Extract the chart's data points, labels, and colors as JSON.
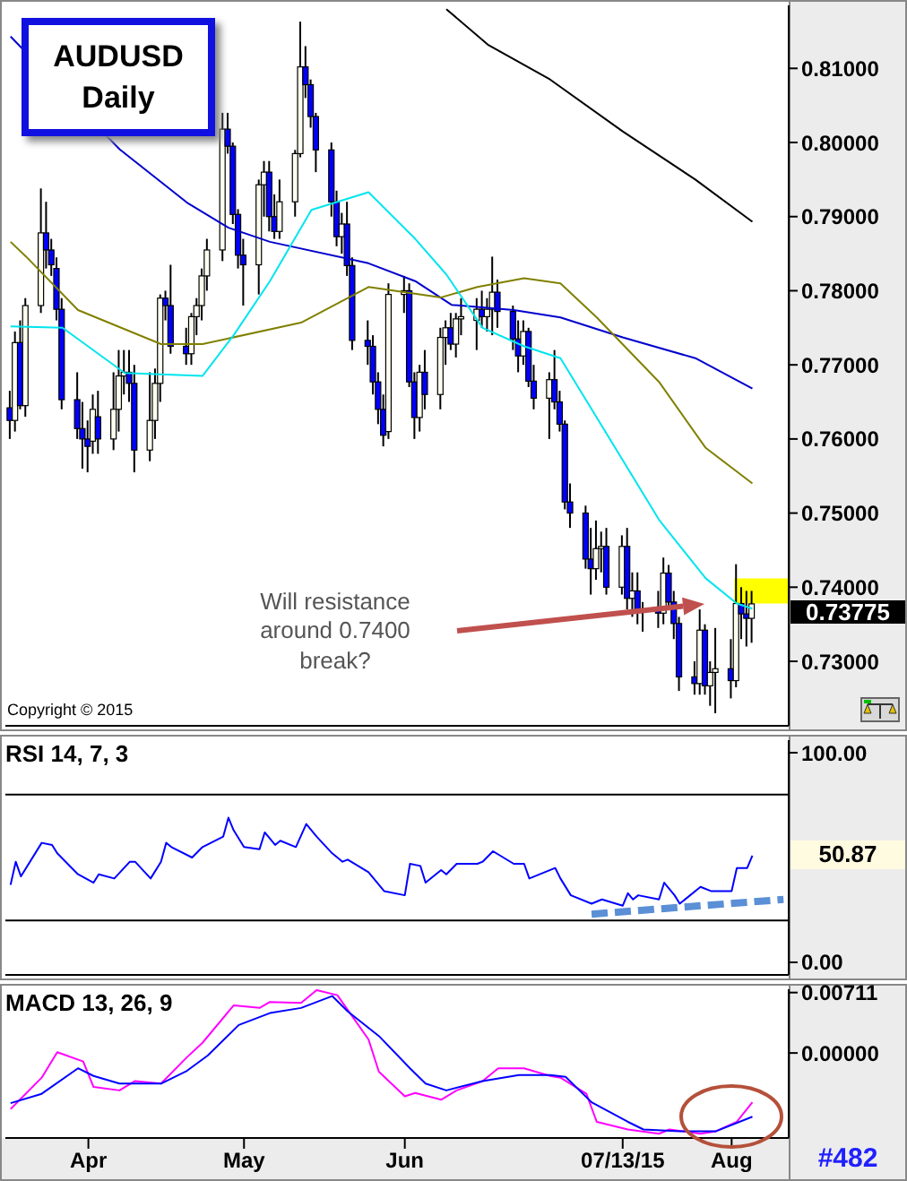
{
  "chart_data": [
    {
      "type": "candlestick",
      "title": "AUDUSD Daily",
      "x": [
        "2015-03-17",
        "2015-03-18",
        "2015-03-19",
        "2015-03-20",
        "2015-03-23",
        "2015-03-24",
        "2015-03-25",
        "2015-03-26",
        "2015-03-27",
        "2015-03-30",
        "2015-03-31",
        "2015-04-01",
        "2015-04-02",
        "2015-04-03",
        "2015-04-06",
        "2015-04-07",
        "2015-04-08",
        "2015-04-09",
        "2015-04-10",
        "2015-04-13",
        "2015-04-14",
        "2015-04-15",
        "2015-04-16",
        "2015-04-17",
        "2015-04-20",
        "2015-04-21",
        "2015-04-22",
        "2015-04-23",
        "2015-04-24",
        "2015-04-27",
        "2015-04-28",
        "2015-04-29",
        "2015-04-30",
        "2015-05-01",
        "2015-05-04",
        "2015-05-05",
        "2015-05-06",
        "2015-05-07",
        "2015-05-08",
        "2015-05-11",
        "2015-05-12",
        "2015-05-13",
        "2015-05-14",
        "2015-05-15",
        "2015-05-18",
        "2015-05-19",
        "2015-05-20",
        "2015-05-21",
        "2015-05-22",
        "2015-05-25",
        "2015-05-26",
        "2015-05-27",
        "2015-05-28",
        "2015-05-29",
        "2015-06-01",
        "2015-06-02",
        "2015-06-03",
        "2015-06-04",
        "2015-06-05",
        "2015-06-08",
        "2015-06-09",
        "2015-06-10",
        "2015-06-11",
        "2015-06-12",
        "2015-06-15",
        "2015-06-16",
        "2015-06-17",
        "2015-06-18",
        "2015-06-19",
        "2015-06-22",
        "2015-06-23",
        "2015-06-24",
        "2015-06-25",
        "2015-06-26",
        "2015-06-29",
        "2015-06-30",
        "2015-07-01",
        "2015-07-02",
        "2015-07-03",
        "2015-07-06",
        "2015-07-07",
        "2015-07-08",
        "2015-07-09",
        "2015-07-10",
        "2015-07-13",
        "2015-07-14",
        "2015-07-15",
        "2015-07-16",
        "2015-07-17",
        "2015-07-20",
        "2015-07-21",
        "2015-07-22",
        "2015-07-23",
        "2015-07-24",
        "2015-07-27",
        "2015-07-28",
        "2015-07-29",
        "2015-07-30",
        "2015-07-31",
        "2015-08-03",
        "2015-08-04",
        "2015-08-05",
        "2015-08-06",
        "2015-08-07"
      ],
      "ohlc": [
        [
          0.7642,
          0.7665,
          0.76,
          0.7625
        ],
        [
          0.7625,
          0.7745,
          0.761,
          0.773
        ],
        [
          0.773,
          0.776,
          0.764,
          0.7645
        ],
        [
          0.7645,
          0.779,
          0.763,
          0.778
        ],
        [
          0.778,
          0.7938,
          0.777,
          0.7878
        ],
        [
          0.7878,
          0.792,
          0.783,
          0.7855
        ],
        [
          0.7855,
          0.787,
          0.782,
          0.7835
        ],
        [
          0.783,
          0.7845,
          0.776,
          0.7775
        ],
        [
          0.7775,
          0.779,
          0.764,
          0.7653
        ],
        [
          0.7653,
          0.769,
          0.76,
          0.7614
        ],
        [
          0.7614,
          0.765,
          0.756,
          0.76
        ],
        [
          0.76,
          0.7625,
          0.7555,
          0.759
        ],
        [
          0.7597,
          0.766,
          0.758,
          0.764
        ],
        [
          0.763,
          0.7665,
          0.758,
          0.76
        ],
        [
          0.76,
          0.769,
          0.7585,
          0.764
        ],
        [
          0.764,
          0.772,
          0.761,
          0.7685
        ],
        [
          0.7685,
          0.772,
          0.766,
          0.769
        ],
        [
          0.769,
          0.772,
          0.765,
          0.7675
        ],
        [
          0.7675,
          0.77,
          0.7555,
          0.7585
        ],
        [
          0.7585,
          0.769,
          0.757,
          0.7625
        ],
        [
          0.7625,
          0.7695,
          0.76,
          0.7675
        ],
        [
          0.7675,
          0.7795,
          0.765,
          0.779
        ],
        [
          0.779,
          0.78,
          0.776,
          0.778
        ],
        [
          0.778,
          0.7835,
          0.7715,
          0.7725
        ],
        [
          0.7725,
          0.775,
          0.77,
          0.7715
        ],
        [
          0.7715,
          0.777,
          0.77,
          0.7765
        ],
        [
          0.7765,
          0.779,
          0.774,
          0.778
        ],
        [
          0.778,
          0.783,
          0.776,
          0.782
        ],
        [
          0.782,
          0.787,
          0.78,
          0.7855
        ],
        [
          0.7855,
          0.804,
          0.784,
          0.8018
        ],
        [
          0.8018,
          0.804,
          0.7985,
          0.7995
        ],
        [
          0.7995,
          0.8,
          0.789,
          0.7903
        ],
        [
          0.7903,
          0.791,
          0.783,
          0.7848
        ],
        [
          0.7848,
          0.787,
          0.778,
          0.7835
        ],
        [
          0.7835,
          0.795,
          0.7795,
          0.7943
        ],
        [
          0.7943,
          0.7975,
          0.79,
          0.796
        ],
        [
          0.796,
          0.7975,
          0.788,
          0.79
        ],
        [
          0.79,
          0.793,
          0.787,
          0.788
        ],
        [
          0.788,
          0.795,
          0.787,
          0.792
        ],
        [
          0.792,
          0.799,
          0.79,
          0.7985
        ],
        [
          0.7985,
          0.8163,
          0.798,
          0.8102
        ],
        [
          0.8102,
          0.813,
          0.806,
          0.8078
        ],
        [
          0.8078,
          0.8085,
          0.802,
          0.8035
        ],
        [
          0.8035,
          0.804,
          0.796,
          0.799
        ],
        [
          0.799,
          0.8,
          0.79,
          0.792
        ],
        [
          0.792,
          0.7935,
          0.786,
          0.7873
        ],
        [
          0.7873,
          0.7905,
          0.785,
          0.789
        ],
        [
          0.789,
          0.792,
          0.782,
          0.7834
        ],
        [
          0.7834,
          0.7845,
          0.772,
          0.7733
        ],
        [
          0.7733,
          0.776,
          0.77,
          0.7725
        ],
        [
          0.7725,
          0.774,
          0.766,
          0.7677
        ],
        [
          0.7677,
          0.769,
          0.762,
          0.764
        ],
        [
          0.764,
          0.766,
          0.759,
          0.7605
        ],
        [
          0.761,
          0.781,
          0.76,
          0.7795
        ],
        [
          0.7795,
          0.782,
          0.777,
          0.78
        ],
        [
          0.78,
          0.781,
          0.767,
          0.7677
        ],
        [
          0.7677,
          0.769,
          0.76,
          0.7629
        ],
        [
          0.7629,
          0.77,
          0.761,
          0.769
        ],
        [
          0.769,
          0.772,
          0.764,
          0.766
        ],
        [
          0.766,
          0.775,
          0.764,
          0.7737
        ],
        [
          0.7737,
          0.776,
          0.77,
          0.775
        ],
        [
          0.775,
          0.777,
          0.772,
          0.7728
        ],
        [
          0.7728,
          0.777,
          0.771,
          0.7762
        ],
        [
          0.7762,
          0.779,
          0.774,
          0.7765
        ],
        [
          0.776,
          0.779,
          0.772,
          0.7775
        ],
        [
          0.7775,
          0.78,
          0.775,
          0.7765
        ],
        [
          0.7765,
          0.779,
          0.7745,
          0.7775
        ],
        [
          0.7775,
          0.7846,
          0.774,
          0.7798
        ],
        [
          0.7798,
          0.7815,
          0.775,
          0.7772
        ],
        [
          0.7772,
          0.778,
          0.772,
          0.7735
        ],
        [
          0.7735,
          0.776,
          0.769,
          0.7712
        ],
        [
          0.7712,
          0.776,
          0.77,
          0.7745
        ],
        [
          0.7745,
          0.775,
          0.767,
          0.7678
        ],
        [
          0.7678,
          0.77,
          0.764,
          0.7655
        ],
        [
          0.7655,
          0.769,
          0.76,
          0.768
        ],
        [
          0.768,
          0.772,
          0.764,
          0.765
        ],
        [
          0.765,
          0.7665,
          0.761,
          0.762
        ],
        [
          0.762,
          0.7625,
          0.7505,
          0.7515
        ],
        [
          0.7515,
          0.754,
          0.748,
          0.75
        ],
        [
          0.75,
          0.751,
          0.7425,
          0.7438
        ],
        [
          0.7438,
          0.748,
          0.739,
          0.7425
        ],
        [
          0.7425,
          0.749,
          0.741,
          0.7452
        ],
        [
          0.7452,
          0.7475,
          0.742,
          0.7455
        ],
        [
          0.7455,
          0.748,
          0.739,
          0.74
        ],
        [
          0.74,
          0.747,
          0.739,
          0.7455
        ],
        [
          0.7455,
          0.748,
          0.737,
          0.7385
        ],
        [
          0.7385,
          0.742,
          0.736,
          0.7395
        ],
        [
          0.7395,
          0.742,
          0.735,
          0.7366
        ],
        [
          0.7366,
          0.738,
          0.734,
          0.737
        ],
        [
          0.737,
          0.7395,
          0.7345,
          0.7365
        ],
        [
          0.7365,
          0.744,
          0.735,
          0.7419
        ],
        [
          0.7419,
          0.743,
          0.737,
          0.738
        ],
        [
          0.738,
          0.7395,
          0.733,
          0.7351
        ],
        [
          0.7351,
          0.736,
          0.726,
          0.7279
        ],
        [
          0.7279,
          0.73,
          0.7255,
          0.727
        ],
        [
          0.727,
          0.737,
          0.7255,
          0.7342
        ],
        [
          0.7342,
          0.735,
          0.7255,
          0.7267
        ],
        [
          0.7267,
          0.73,
          0.724,
          0.7285
        ],
        [
          0.7285,
          0.7345,
          0.723,
          0.729
        ],
        [
          0.729,
          0.733,
          0.725,
          0.7274
        ],
        [
          0.7274,
          0.7431,
          0.7265,
          0.7378
        ],
        [
          0.7378,
          0.74,
          0.733,
          0.7364
        ],
        [
          0.7364,
          0.7395,
          0.732,
          0.7358
        ],
        [
          0.7358,
          0.7395,
          0.7325,
          0.73775
        ]
      ],
      "series": [
        {
          "type": "line",
          "color": "#000000",
          "x": [
            "2015-06-09",
            "2015-06-17",
            "2015-06-29",
            "2015-07-13",
            "2015-07-27",
            "2015-08-07"
          ],
          "values": [
            0.818,
            0.8132,
            0.8085,
            0.8015,
            0.795,
            0.7893
          ]
        },
        {
          "type": "line",
          "color": "#0000cc",
          "x": [
            "2015-03-17",
            "2015-04-07",
            "2015-04-20",
            "2015-04-28",
            "2015-05-06",
            "2015-05-25",
            "2015-06-03",
            "2015-06-10",
            "2015-06-22",
            "2015-07-01",
            "2015-07-13",
            "2015-07-27",
            "2015-08-07"
          ],
          "values": [
            0.8143,
            0.7991,
            0.7919,
            0.7885,
            0.7866,
            0.7837,
            0.7813,
            0.7781,
            0.7774,
            0.7764,
            0.7737,
            0.7709,
            0.7668
          ]
        },
        {
          "type": "line",
          "color": "#808000",
          "x": [
            "2015-03-17",
            "2015-03-20",
            "2015-03-30",
            "2015-04-15",
            "2015-04-23",
            "2015-05-12",
            "2015-05-25",
            "2015-06-08",
            "2015-06-15",
            "2015-06-24",
            "2015-07-01",
            "2015-07-08",
            "2015-07-20",
            "2015-07-29",
            "2015-08-07"
          ],
          "values": [
            0.7866,
            0.7846,
            0.7774,
            0.7728,
            0.7728,
            0.7757,
            0.7805,
            0.7791,
            0.7805,
            0.7817,
            0.781,
            0.7764,
            0.7677,
            0.7588,
            0.754
          ]
        },
        {
          "type": "line",
          "color": "#00e5ee",
          "x": [
            "2015-03-17",
            "2015-03-27",
            "2015-04-08",
            "2015-04-23",
            "2015-04-29",
            "2015-05-06",
            "2015-05-14",
            "2015-05-25",
            "2015-06-03",
            "2015-06-09",
            "2015-06-16",
            "2015-06-24",
            "2015-07-01",
            "2015-07-08",
            "2015-07-20",
            "2015-07-29",
            "2015-08-04",
            "2015-08-07"
          ],
          "values": [
            0.7752,
            0.775,
            0.7689,
            0.7685,
            0.774,
            0.7813,
            0.7909,
            0.7933,
            0.787,
            0.7822,
            0.775,
            0.7725,
            0.7709,
            0.7629,
            0.7491,
            0.7412,
            0.7378,
            0.7371
          ]
        }
      ],
      "xlim": [
        "2015-03-16",
        "2015-08-14"
      ],
      "ylim": [
        0.7213,
        0.8185
      ],
      "yticks": [
        {
          "value": 0.73,
          "label": "0.73000"
        },
        {
          "value": 0.74,
          "label": "0.74000"
        },
        {
          "value": 0.75,
          "label": "0.75000"
        },
        {
          "value": 0.76,
          "label": "0.76000"
        },
        {
          "value": 0.77,
          "label": "0.77000"
        },
        {
          "value": 0.78,
          "label": "0.78000"
        },
        {
          "value": 0.79,
          "label": "0.79000"
        },
        {
          "value": 0.8,
          "label": "0.80000"
        },
        {
          "value": 0.81,
          "label": "0.81000"
        }
      ],
      "tick_labels": "y",
      "bands": [
        {
          "axis": "y",
          "from": 0.7378,
          "to": 0.7412,
          "color": "#ffff00"
        }
      ],
      "annotations": [
        "Will resistance around 0.7400 break?",
        "Copyright © 2015",
        "0.73775"
      ]
    },
    {
      "type": "line",
      "title": "RSI 14, 7, 3",
      "series": [
        {
          "color": "#0000ff",
          "x": [
            "2015-03-17",
            "2015-03-18",
            "2015-03-19",
            "2015-03-23",
            "2015-03-25",
            "2015-03-26",
            "2015-03-30",
            "2015-04-02",
            "2015-04-03",
            "2015-04-06",
            "2015-04-09",
            "2015-04-10",
            "2015-04-13",
            "2015-04-15",
            "2015-04-16",
            "2015-04-17",
            "2015-04-21",
            "2015-04-23",
            "2015-04-27",
            "2015-04-28",
            "2015-04-29",
            "2015-05-01",
            "2015-05-04",
            "2015-05-05",
            "2015-05-07",
            "2015-05-08",
            "2015-05-11",
            "2015-05-13",
            "2015-05-15",
            "2015-05-18",
            "2015-05-20",
            "2015-05-21",
            "2015-05-25",
            "2015-05-28",
            "2015-06-01",
            "2015-06-02",
            "2015-06-04",
            "2015-06-05",
            "2015-06-08",
            "2015-06-09",
            "2015-06-11",
            "2015-06-15",
            "2015-06-16",
            "2015-06-18",
            "2015-06-22",
            "2015-06-24",
            "2015-06-25",
            "2015-06-30",
            "2015-07-01",
            "2015-07-03",
            "2015-07-07",
            "2015-07-09",
            "2015-07-13",
            "2015-07-14",
            "2015-07-15",
            "2015-07-16",
            "2015-07-20",
            "2015-07-21",
            "2015-07-23",
            "2015-07-24",
            "2015-07-28",
            "2015-07-30",
            "2015-08-03",
            "2015-08-04",
            "2015-08-06",
            "2015-08-07"
          ],
          "values": [
            37,
            48,
            41,
            57,
            56,
            52,
            42,
            38,
            42,
            40,
            48,
            48,
            40,
            48,
            57,
            55,
            50,
            55,
            60,
            69,
            63,
            55,
            54,
            62,
            56,
            58,
            55,
            66,
            60,
            52,
            48,
            49,
            43,
            34,
            32,
            47,
            46,
            38,
            44,
            42,
            47,
            47,
            48,
            53,
            47,
            47,
            40,
            45,
            40,
            32,
            28,
            30,
            27,
            33,
            30,
            32,
            30,
            38,
            32,
            28,
            36,
            34,
            34,
            45,
            45,
            50.87
          ]
        },
        {
          "type": "line",
          "color": "#5b8fd6",
          "line_style": "dashed",
          "x": [
            "2015-07-07",
            "2015-08-13"
          ],
          "values": [
            23,
            30
          ]
        }
      ],
      "xlim": [
        "2015-03-16",
        "2015-08-14"
      ],
      "ylim": [
        -6,
        106
      ],
      "yticks": [
        {
          "value": 100,
          "label": "100.00"
        },
        {
          "value": 0,
          "label": "0.00"
        }
      ],
      "tick_labels": "y",
      "ref_lines": [
        {
          "axis": "y",
          "value": 80,
          "color": "#000000"
        },
        {
          "axis": "y",
          "value": 20,
          "color": "#000000"
        }
      ],
      "annotations": [
        "50.87"
      ]
    },
    {
      "type": "line",
      "title": "MACD 13, 26, 9",
      "series": [
        {
          "color": "#ff00ff",
          "x": [
            "2015-03-17",
            "2015-03-23",
            "2015-03-26",
            "2015-03-31",
            "2015-04-02",
            "2015-04-07",
            "2015-04-10",
            "2015-04-15",
            "2015-04-20",
            "2015-04-23",
            "2015-04-29",
            "2015-05-04",
            "2015-05-06",
            "2015-05-12",
            "2015-05-15",
            "2015-05-19",
            "2015-05-25",
            "2015-05-27",
            "2015-06-01",
            "2015-06-03",
            "2015-06-08",
            "2015-06-11",
            "2015-06-16",
            "2015-06-19",
            "2015-06-24",
            "2015-06-29",
            "2015-07-01",
            "2015-07-06",
            "2015-07-08",
            "2015-07-14",
            "2015-07-20",
            "2015-07-22",
            "2015-07-28",
            "2015-07-31",
            "2015-08-04",
            "2015-08-07"
          ],
          "values": [
            -0.0066,
            -0.0029,
            0.0001,
            -0.001,
            -0.004,
            -0.0044,
            -0.0033,
            -0.0036,
            -0.0005,
            0.0012,
            0.0056,
            0.0053,
            0.006,
            0.0059,
            0.0074,
            0.0068,
            0.0016,
            -0.0022,
            -0.0051,
            -0.0047,
            -0.0055,
            -0.0044,
            -0.0033,
            -0.0018,
            -0.0018,
            -0.0027,
            -0.0029,
            -0.0048,
            -0.0081,
            -0.009,
            -0.0095,
            -0.009,
            -0.0095,
            -0.0092,
            -0.0081,
            -0.0058
          ]
        },
        {
          "color": "#0000ff",
          "x": [
            "2015-03-17",
            "2015-03-23",
            "2015-03-30",
            "2015-04-02",
            "2015-04-07",
            "2015-04-15",
            "2015-04-20",
            "2015-04-24",
            "2015-04-30",
            "2015-05-06",
            "2015-05-12",
            "2015-05-18",
            "2015-05-21",
            "2015-05-27",
            "2015-06-02",
            "2015-06-05",
            "2015-06-09",
            "2015-06-16",
            "2015-06-23",
            "2015-06-29",
            "2015-07-02",
            "2015-07-07",
            "2015-07-14",
            "2015-07-17",
            "2015-07-24",
            "2015-07-31",
            "2015-08-07"
          ],
          "values": [
            -0.0059,
            -0.0048,
            -0.0018,
            -0.0027,
            -0.0036,
            -0.0036,
            -0.0021,
            -0.0003,
            0.0033,
            0.0047,
            0.0053,
            0.0067,
            0.0049,
            0.002,
            -0.0018,
            -0.0036,
            -0.0044,
            -0.0033,
            -0.0026,
            -0.0026,
            -0.0028,
            -0.0058,
            -0.0081,
            -0.009,
            -0.0092,
            -0.0092,
            -0.0075
          ]
        }
      ],
      "xlim": [
        "2015-03-16",
        "2015-08-14"
      ],
      "xticks": [
        {
          "value": "2015-04-01",
          "label": "Apr"
        },
        {
          "value": "2015-05-01",
          "label": "May"
        },
        {
          "value": "2015-06-01",
          "label": "Jun"
        },
        {
          "value": "2015-07-13",
          "label": "07/13/15"
        },
        {
          "value": "2015-08-03",
          "label": "Aug"
        }
      ],
      "ylim": [
        -0.01,
        0.0075
      ],
      "yticks": [
        {
          "value": 0.00711,
          "label": "0.00711"
        },
        {
          "value": 0,
          "label": "0.00000"
        }
      ],
      "annotations": [
        "#482"
      ]
    }
  ]
}
